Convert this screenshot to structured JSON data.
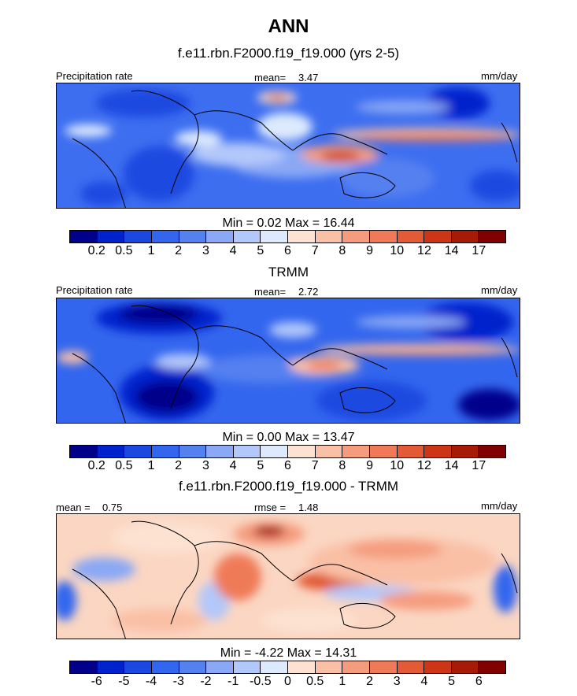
{
  "title": "ANN",
  "colors": {
    "prec": [
      "#00008b",
      "#0022cc",
      "#1a48e0",
      "#3366ee",
      "#5580f0",
      "#8aa8f5",
      "#b3c8fa",
      "#ddeafd",
      "#fde2d2",
      "#f9c0a6",
      "#f59c7e",
      "#ef7a58",
      "#e25a36",
      "#cc3515",
      "#a61a08",
      "#800000"
    ],
    "diff": [
      "#00008b",
      "#0022cc",
      "#1a48e0",
      "#3366ee",
      "#5580f0",
      "#8aa8f5",
      "#b3c8fa",
      "#ddeafd",
      "#fde2d2",
      "#f9c0a6",
      "#f59c7e",
      "#ef7a58",
      "#e25a36",
      "#cc3515",
      "#a61a08",
      "#800000"
    ]
  },
  "panels": [
    {
      "title": "f.e11.rbn.F2000.f19_f19.000 (yrs 2-5)",
      "left_label": "Precipitation rate",
      "center_label": "mean=",
      "center_value": "3.47",
      "right_label": "mm/day",
      "minmax_text": "Min =   0.02 Max =  16.44",
      "ticks": [
        "0.2",
        "0.5",
        "1",
        "2",
        "3",
        "4",
        "5",
        "6",
        "7",
        "8",
        "9",
        "10",
        "12",
        "14",
        "17"
      ]
    },
    {
      "title": "TRMM",
      "left_label": "Precipitation rate",
      "center_label": "mean=",
      "center_value": "2.72",
      "right_label": "mm/day",
      "minmax_text": "Min =   0.00 Max =  13.47",
      "ticks": [
        "0.2",
        "0.5",
        "1",
        "2",
        "3",
        "4",
        "5",
        "6",
        "7",
        "8",
        "9",
        "10",
        "12",
        "14",
        "17"
      ]
    },
    {
      "title": "f.e11.rbn.F2000.f19_f19.000 - TRMM",
      "left_label": "mean =",
      "left_value": "0.75",
      "center_label": "rmse =",
      "center_value": "1.48",
      "right_label": "mm/day",
      "minmax_text": "Min =  -4.22 Max =  14.31",
      "ticks": [
        "-6",
        "-5",
        "-4",
        "-3",
        "-2",
        "-1",
        "-0.5",
        "0",
        "0.5",
        "1",
        "2",
        "3",
        "4",
        "5",
        "6"
      ]
    }
  ],
  "chart_data": [
    {
      "type": "heatmap",
      "title": "f.e11.rbn.F2000.f19_f19.000 (yrs 2-5)",
      "variable": "Precipitation rate",
      "units": "mm/day",
      "mean": 3.47,
      "min": 0.02,
      "max": 16.44,
      "levels": [
        0.2,
        0.5,
        1,
        2,
        3,
        4,
        5,
        6,
        7,
        8,
        9,
        10,
        12,
        14,
        17
      ]
    },
    {
      "type": "heatmap",
      "title": "TRMM",
      "variable": "Precipitation rate",
      "units": "mm/day",
      "mean": 2.72,
      "min": 0.0,
      "max": 13.47,
      "levels": [
        0.2,
        0.5,
        1,
        2,
        3,
        4,
        5,
        6,
        7,
        8,
        9,
        10,
        12,
        14,
        17
      ]
    },
    {
      "type": "heatmap",
      "title": "f.e11.rbn.F2000.f19_f19.000 - TRMM",
      "units": "mm/day",
      "mean": 0.75,
      "rmse": 1.48,
      "min": -4.22,
      "max": 14.31,
      "levels": [
        -6,
        -5,
        -4,
        -3,
        -2,
        -1,
        -0.5,
        0,
        0.5,
        1,
        2,
        3,
        4,
        5,
        6
      ]
    }
  ]
}
